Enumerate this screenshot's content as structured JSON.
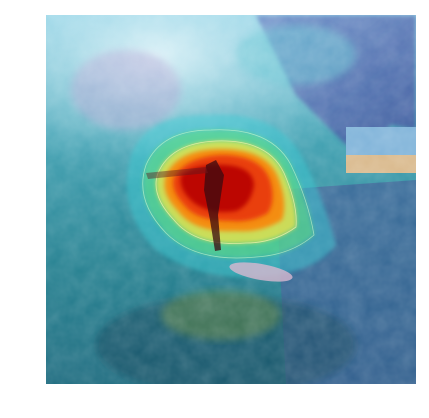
{
  "image": {
    "subject": "surfer-in-wave-photo",
    "overlay": "attention-heatmap",
    "colors": {
      "background": "#ffffff",
      "water_teal": "#2f8f99",
      "water_deep": "#1d5f7a",
      "sky_light": "#cfeaf5",
      "wave_blue": "#4a62a8",
      "sand": "#d9b98c",
      "heat_red": "#b80000",
      "heat_orange": "#ff7a00",
      "heat_yellow": "#ffe640",
      "heat_green": "#5fe07a",
      "heat_cyan": "#40d0d8"
    }
  }
}
